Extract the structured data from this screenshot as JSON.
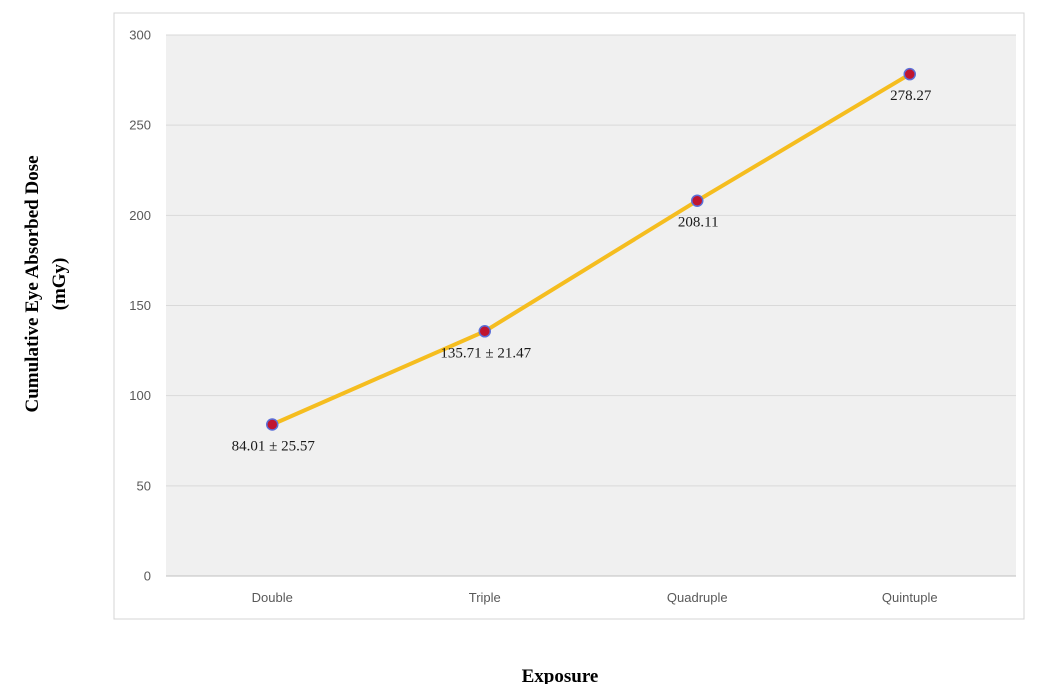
{
  "chart_data": {
    "type": "line",
    "title": "",
    "xlabel": "Exposure",
    "ylabel_lines": [
      "Cumulative Eye Absorbed Dose",
      "(mGy)"
    ],
    "categories": [
      "Double",
      "Triple",
      "Quadruple",
      "Quintuple"
    ],
    "series": [
      {
        "values": [
          84.01,
          135.71,
          208.11,
          278.27
        ],
        "labels": [
          "84.01 ± 25.57",
          "135.71 ± 21.47",
          "208.11",
          "278.27"
        ]
      }
    ],
    "ylim": [
      0,
      300
    ],
    "yticks": [
      0,
      50,
      100,
      150,
      200,
      250,
      300
    ],
    "grid": true,
    "legend": "none",
    "colors": {
      "line": "#F5BD1F",
      "marker_fill": "#C0152F",
      "marker_edge": "#5B6FD8",
      "plot_bg": "#F0F0F0",
      "gridline": "#D9D9D9"
    }
  }
}
